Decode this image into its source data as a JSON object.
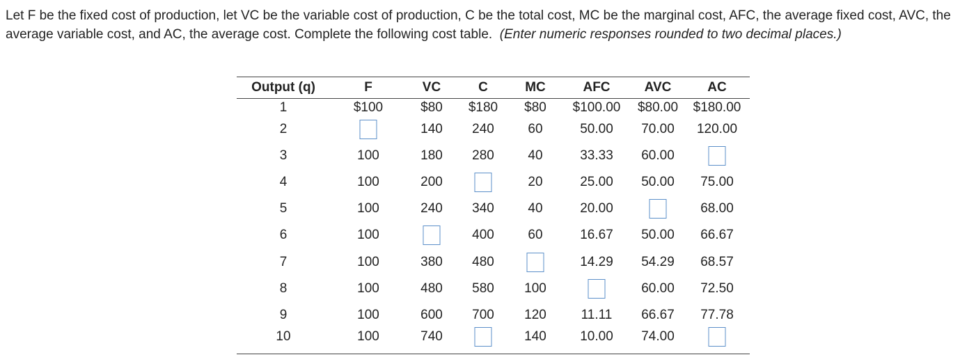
{
  "instructions": {
    "text": "Let F be the fixed cost of production, let VC be the variable cost of production, C be the total cost, MC be the marginal cost, AFC, the average fixed cost, AVC, the average variable cost, and AC, the average cost.  Complete the following cost table.",
    "note": "(Enter numeric responses rounded to two decimal places.)"
  },
  "table": {
    "headers": [
      "Output (q)",
      "F",
      "VC",
      "C",
      "MC",
      "AFC",
      "AVC",
      "AC"
    ],
    "rows": [
      [
        "1",
        "$100",
        "$80",
        "$180",
        "$80",
        "$100.00",
        "$80.00",
        "$180.00"
      ],
      [
        "2",
        null,
        "140",
        "240",
        "60",
        "50.00",
        "70.00",
        "120.00"
      ],
      [
        "3",
        "100",
        "180",
        "280",
        "40",
        "33.33",
        "60.00",
        null
      ],
      [
        "4",
        "100",
        "200",
        null,
        "20",
        "25.00",
        "50.00",
        "75.00"
      ],
      [
        "5",
        "100",
        "240",
        "340",
        "40",
        "20.00",
        null,
        "68.00"
      ],
      [
        "6",
        "100",
        null,
        "400",
        "60",
        "16.67",
        "50.00",
        "66.67"
      ],
      [
        "7",
        "100",
        "380",
        "480",
        null,
        "14.29",
        "54.29",
        "68.57"
      ],
      [
        "8",
        "100",
        "480",
        "580",
        "100",
        null,
        "60.00",
        "72.50"
      ],
      [
        "9",
        "100",
        "600",
        "700",
        "120",
        "11.11",
        "66.67",
        "77.78"
      ],
      [
        "10",
        "100",
        "740",
        null,
        "140",
        "10.00",
        "74.00",
        null
      ]
    ]
  }
}
